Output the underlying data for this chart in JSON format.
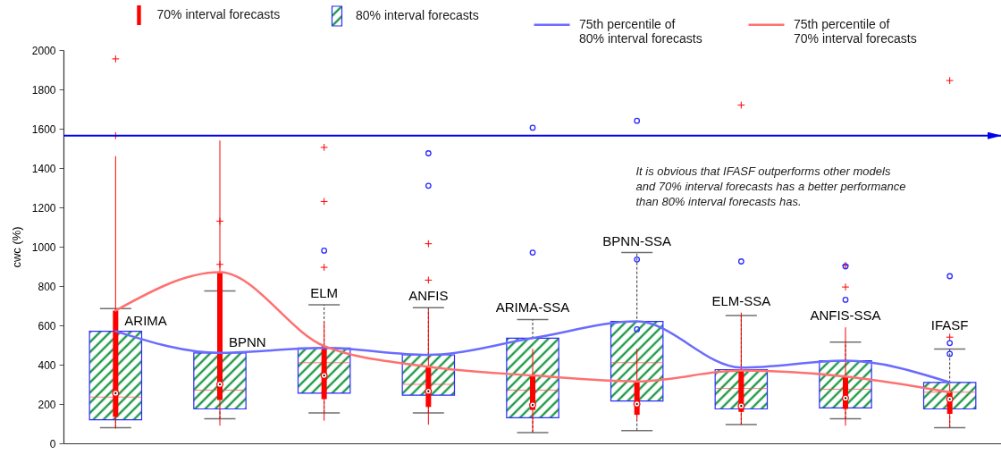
{
  "chart_data": {
    "type": "box",
    "ylabel": "cwc (%)",
    "categories": [
      "ARIMA",
      "BPNN",
      "ELM",
      "ANFIS",
      "ARIMA-SSA",
      "BPNN-SSA",
      "ELM-SSA",
      "ANFIS-SSA",
      "IFASF"
    ],
    "series": [
      {
        "name": "70% interval forecasts",
        "color": "#ff0000",
        "boxes": [
          {
            "low": 75,
            "q1": 135,
            "median": 255,
            "q3": 675,
            "high": 1460,
            "outliers": [
              1565,
              1955
            ]
          },
          {
            "low": 90,
            "q1": 220,
            "median": 300,
            "q3": 870,
            "high": 1540,
            "outliers": [
              910,
              1130
            ]
          },
          {
            "low": 115,
            "q1": 225,
            "median": 345,
            "q3": 495,
            "high": 615,
            "outliers": [
              895,
              1230,
              1505
            ]
          },
          {
            "low": 95,
            "q1": 185,
            "median": 265,
            "q3": 390,
            "high": 680,
            "outliers": [
              830,
              1015
            ]
          },
          {
            "low": 60,
            "q1": 170,
            "median": 195,
            "q3": 345,
            "high": 480
          },
          {
            "low": 120,
            "q1": 145,
            "median": 200,
            "q3": 315,
            "high": 480
          },
          {
            "low": 95,
            "q1": 160,
            "median": 190,
            "q3": 375,
            "high": 665,
            "outliers": [
              1720
            ]
          },
          {
            "low": 90,
            "q1": 175,
            "median": 230,
            "q3": 340,
            "high": 590,
            "outliers": [
              795,
              905
            ]
          },
          {
            "low": 80,
            "q1": 150,
            "median": 225,
            "q3": 260,
            "high": 300,
            "outliers": [
              540,
              1845
            ]
          }
        ]
      },
      {
        "name": "80% interval forecasts",
        "color": "#2b2bff",
        "boxes": [
          {
            "low": 80,
            "q1": 120,
            "median": 235,
            "q3": 570,
            "high": 685
          },
          {
            "low": 125,
            "q1": 175,
            "median": 270,
            "q3": 460,
            "high": 775
          },
          {
            "low": 155,
            "q1": 255,
            "median": 410,
            "q3": 485,
            "high": 705,
            "outliers": [
              980
            ]
          },
          {
            "low": 155,
            "q1": 245,
            "median": 300,
            "q3": 450,
            "high": 690,
            "outliers": [
              1310,
              1475
            ]
          },
          {
            "low": 55,
            "q1": 130,
            "median": 270,
            "q3": 535,
            "high": 630,
            "outliers": [
              970,
              1605
            ]
          },
          {
            "low": 65,
            "q1": 215,
            "median": 410,
            "q3": 620,
            "high": 970,
            "outliers": [
              580,
              935,
              1640
            ]
          },
          {
            "low": 95,
            "q1": 175,
            "median": 280,
            "q3": 375,
            "high": 650,
            "outliers": [
              925
            ]
          },
          {
            "low": 125,
            "q1": 180,
            "median": 275,
            "q3": 420,
            "high": 515,
            "outliers": [
              730,
              900
            ]
          },
          {
            "low": 80,
            "q1": 175,
            "median": 260,
            "q3": 310,
            "high": 480,
            "outliers": [
              455,
              510,
              850
            ]
          }
        ]
      },
      {
        "name": "75th percentile of 80% interval forecasts",
        "type": "line",
        "color": "#6b6bff",
        "values": [
          570,
          460,
          485,
          450,
          535,
          620,
          385,
          420,
          310
        ]
      },
      {
        "name": "75th percentile of 70% interval forecasts",
        "type": "line",
        "color": "#ff7070",
        "values": [
          675,
          870,
          495,
          390,
          345,
          315,
          370,
          340,
          260
        ]
      }
    ],
    "ylim": [
      0,
      2000
    ],
    "yticks": [
      0,
      200,
      400,
      600,
      800,
      1000,
      1200,
      1400,
      1600,
      1800,
      2000
    ],
    "ref_lines": [
      {
        "axis": "y",
        "value": 1565,
        "color": "#0000ee"
      }
    ],
    "tick_labels": "y",
    "legend": "top",
    "annotations": [
      "It is obvious that IFASF outperforms other models and 70% interval forecasts has a better performance than 80% interval forecasts has."
    ]
  }
}
